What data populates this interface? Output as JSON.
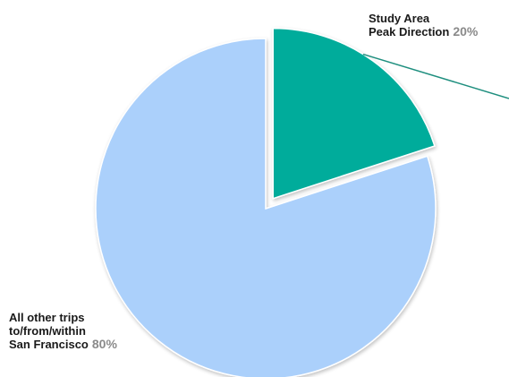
{
  "chart_data": {
    "type": "pie",
    "title": "",
    "categories": [
      "Study Area Peak Direction",
      "All other trips to/from/within San Francisco"
    ],
    "values": [
      20,
      80
    ],
    "unit": "%",
    "slices": [
      {
        "label_lines": [
          "Study Area",
          "Peak Direction"
        ],
        "value": 20,
        "percent_label": "20%",
        "color": "#00ac9b",
        "exploded": true
      },
      {
        "label_lines": [
          "All other trips",
          "to/from/within",
          "San Francisco"
        ],
        "value": 80,
        "percent_label": "80%",
        "color": "#abd0fb",
        "exploded": false
      }
    ],
    "leader_line_color": "#1f8f7f",
    "legend": "none",
    "grid": false
  }
}
